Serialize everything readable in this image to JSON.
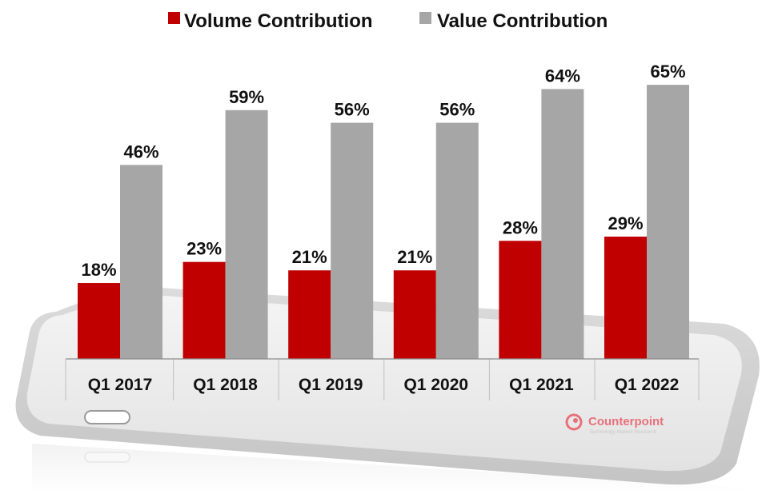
{
  "chart_data": {
    "type": "bar",
    "title": "",
    "xlabel": "",
    "ylabel": "",
    "ylim": [
      0,
      70
    ],
    "grid": false,
    "legend_position": "top-center",
    "categories": [
      "Q1 2017",
      "Q1 2018",
      "Q1 2019",
      "Q1 2020",
      "Q1 2021",
      "Q1 2022"
    ],
    "series": [
      {
        "name": "Volume Contribution",
        "color": "#c00000",
        "values": [
          18,
          23,
          21,
          21,
          28,
          29
        ],
        "labels": [
          "18%",
          "23%",
          "21%",
          "21%",
          "28%",
          "29%"
        ]
      },
      {
        "name": "Value Contribution",
        "color": "#a6a6a6",
        "values": [
          46,
          59,
          56,
          56,
          64,
          65
        ],
        "labels": [
          "46%",
          "59%",
          "56%",
          "56%",
          "64%",
          "65%"
        ]
      }
    ]
  },
  "brand": {
    "name": "Counterpoint",
    "tagline": "Technology Market Research",
    "color": "#e8707a"
  }
}
